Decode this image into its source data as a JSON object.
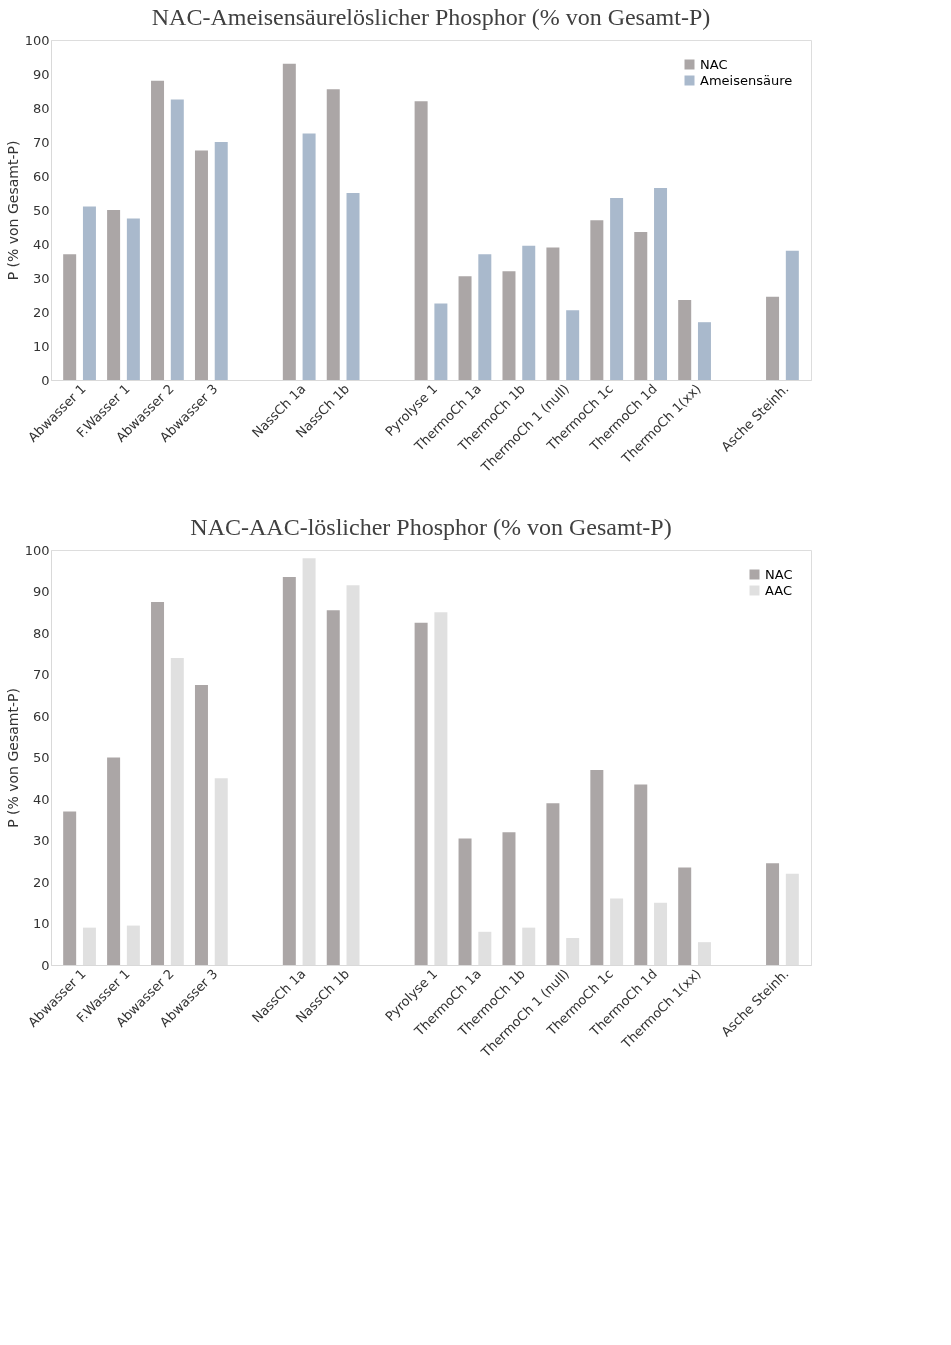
{
  "chart_data": [
    {
      "type": "bar",
      "title": "NAC-Ameisensäurelöslicher Phosphor (% von Gesamt-P)",
      "ylabel": "P (% von Gesamt-P)",
      "categories": [
        "Abwasser 1",
        "F.Wasser 1",
        "Abwasser 2",
        "Abwasser 3",
        null,
        "NassCh 1a",
        "NassCh 1b",
        null,
        "Pyrolyse 1",
        "ThermoCh 1a",
        "ThermoCh 1b",
        "ThermoCh 1 (null)",
        "ThermoCh 1c",
        "ThermoCh 1d",
        "ThermoCh 1(xx)",
        null,
        "Asche Steinh."
      ],
      "series": [
        {
          "name": "NAC",
          "color": "#aba6a6",
          "values": [
            37,
            50,
            88,
            67.5,
            null,
            93,
            85.5,
            null,
            82,
            30.5,
            32,
            39,
            47,
            43.5,
            23.5,
            null,
            24.5
          ]
        },
        {
          "name": "Ameisensäure",
          "color": "#a9b9cc",
          "values": [
            51,
            47.5,
            82.5,
            70,
            null,
            72.5,
            55,
            null,
            22.5,
            37,
            39.5,
            20.5,
            53.5,
            56.5,
            17,
            null,
            38
          ]
        }
      ],
      "ylim": [
        0,
        100
      ],
      "yticks": [
        0,
        10,
        20,
        30,
        40,
        50,
        60,
        70,
        80,
        90,
        100
      ],
      "grid": false,
      "legend": "top right"
    },
    {
      "type": "bar",
      "title": "NAC-AAC-löslicher Phosphor (% von Gesamt-P)",
      "ylabel": "P (% von Gesamt-P)",
      "categories": [
        "Abwasser 1",
        "F.Wasser 1",
        "Abwasser 2",
        "Abwasser 3",
        null,
        "NassCh 1a",
        "NassCh 1b",
        null,
        "Pyrolyse 1",
        "ThermoCh 1a",
        "ThermoCh 1b",
        "ThermoCh 1 (null)",
        "ThermoCh 1c",
        "ThermoCh 1d",
        "ThermoCh 1(xx)",
        null,
        "Asche Steinh."
      ],
      "series": [
        {
          "name": "NAC",
          "color": "#aba6a6",
          "values": [
            37,
            50,
            87.5,
            67.5,
            null,
            93.5,
            85.5,
            null,
            82.5,
            30.5,
            32,
            39,
            47,
            43.5,
            23.5,
            null,
            24.5
          ]
        },
        {
          "name": "AAC",
          "color": "#e0e0e0",
          "values": [
            9,
            9.5,
            74,
            45,
            null,
            98,
            91.5,
            null,
            85,
            8,
            9,
            6.5,
            16,
            15,
            5.5,
            null,
            22
          ]
        }
      ],
      "ylim": [
        0,
        100
      ],
      "yticks": [
        0,
        10,
        20,
        30,
        40,
        50,
        60,
        70,
        80,
        90,
        100
      ],
      "grid": false,
      "legend": "top right"
    }
  ]
}
